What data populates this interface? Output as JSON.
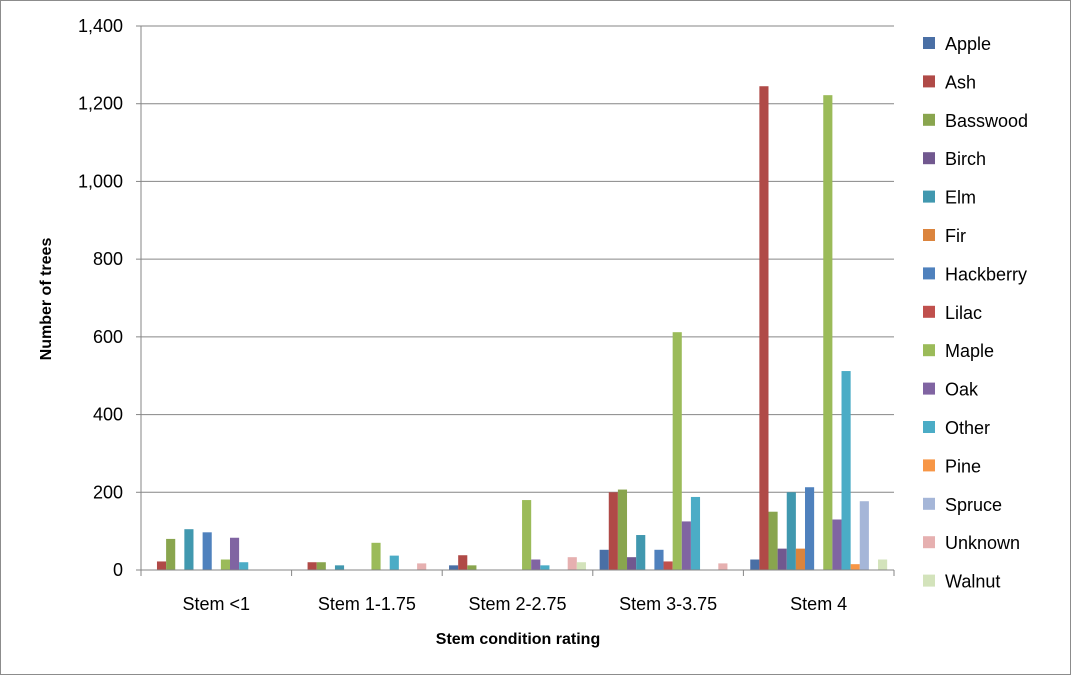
{
  "chart_data": {
    "type": "bar",
    "title": "",
    "xlabel": "Stem condition rating",
    "ylabel": "Number of trees",
    "ylim": [
      0,
      1400
    ],
    "yticks": [
      0,
      200,
      400,
      600,
      800,
      1000,
      1200,
      1400
    ],
    "ytick_labels": [
      "0",
      "200",
      "400",
      "600",
      "800",
      "1,000",
      "1,200",
      "1,400"
    ],
    "grid": true,
    "legend_position": "right",
    "categories": [
      "Stem <1",
      "Stem 1-1.75",
      "Stem 2-2.75",
      "Stem 3-3.75",
      "Stem 4"
    ],
    "series": [
      {
        "name": "Apple",
        "color": "#4a6fa5",
        "values": [
          0,
          0,
          12,
          52,
          27
        ]
      },
      {
        "name": "Ash",
        "color": "#b04a47",
        "values": [
          22,
          20,
          38,
          200,
          1245
        ]
      },
      {
        "name": "Basswood",
        "color": "#89a54e",
        "values": [
          80,
          20,
          12,
          207,
          150
        ]
      },
      {
        "name": "Birch",
        "color": "#71588f",
        "values": [
          0,
          0,
          0,
          33,
          55
        ]
      },
      {
        "name": "Elm",
        "color": "#4198af",
        "values": [
          105,
          12,
          0,
          90,
          200
        ]
      },
      {
        "name": "Fir",
        "color": "#db843d",
        "values": [
          0,
          0,
          0,
          0,
          55
        ]
      },
      {
        "name": "Hackberry",
        "color": "#4f81bd",
        "values": [
          97,
          0,
          0,
          52,
          213
        ]
      },
      {
        "name": "Lilac",
        "color": "#c0504d",
        "values": [
          0,
          0,
          0,
          22,
          0
        ]
      },
      {
        "name": "Maple",
        "color": "#9bbb59",
        "values": [
          27,
          70,
          180,
          612,
          1222
        ]
      },
      {
        "name": "Oak",
        "color": "#8064a2",
        "values": [
          83,
          0,
          27,
          125,
          130
        ]
      },
      {
        "name": "Other",
        "color": "#4bacc6",
        "values": [
          20,
          37,
          12,
          188,
          512
        ]
      },
      {
        "name": "Pine",
        "color": "#f79646",
        "values": [
          0,
          0,
          0,
          0,
          15
        ]
      },
      {
        "name": "Spruce",
        "color": "#a5b6d8",
        "values": [
          0,
          0,
          0,
          0,
          177
        ]
      },
      {
        "name": "Unknown",
        "color": "#e6b0b0",
        "values": [
          0,
          17,
          33,
          17,
          0
        ]
      },
      {
        "name": "Walnut",
        "color": "#d3e3bb",
        "values": [
          0,
          0,
          20,
          0,
          27
        ]
      }
    ]
  }
}
